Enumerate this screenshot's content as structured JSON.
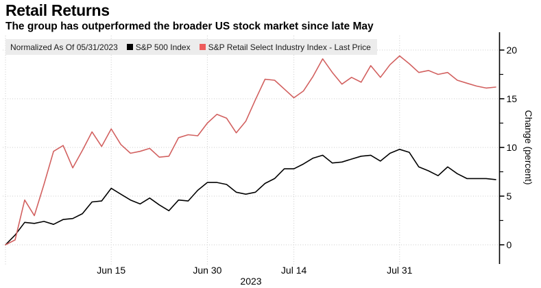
{
  "title": "Retail Returns",
  "subtitle": "The group has outperformed the broader US stock market since late May",
  "legend": {
    "note": "Normalized As Of 05/31/2023",
    "items": [
      {
        "label": "S&P 500 Index",
        "marker_color": "#000000"
      },
      {
        "label": "S&P Retail Select Industry Index - Last Price",
        "marker_color": "#ee5c5c"
      }
    ]
  },
  "chart_data": {
    "type": "line",
    "title": "Retail Returns",
    "subtitle": "The group has outperformed the broader US stock market since late May",
    "xlabel": "",
    "ylabel": "Change (percent)",
    "ylim": [
      0,
      20
    ],
    "grid": "dotted",
    "legend_position": "top-left-band",
    "x_axis": {
      "year_label": "2023",
      "num_points": 52,
      "start_gridline_index": 0,
      "ticks": [
        {
          "label": "Jun 15",
          "index": 11
        },
        {
          "label": "Jun 30",
          "index": 21
        },
        {
          "label": "Jul 14",
          "index": 30
        },
        {
          "label": "Jul 31",
          "index": 41
        }
      ]
    },
    "y_axis": {
      "label": "Change (percent)",
      "ticks": [
        0,
        5,
        10,
        15,
        20
      ],
      "minor_ticks": [
        2.5,
        7.5,
        12.5,
        17.5
      ],
      "side": "right"
    },
    "series": [
      {
        "name": "S&P 500 Index",
        "color": "#000000",
        "values": [
          0,
          1.0,
          2.3,
          2.2,
          2.4,
          2.1,
          2.6,
          2.7,
          3.2,
          4.4,
          4.5,
          5.8,
          5.2,
          4.6,
          4.2,
          4.8,
          4.1,
          3.5,
          4.6,
          4.5,
          5.6,
          6.4,
          6.4,
          6.2,
          5.4,
          5.2,
          5.4,
          6.3,
          6.8,
          7.8,
          7.8,
          8.3,
          8.9,
          9.2,
          8.4,
          8.5,
          8.8,
          9.1,
          9.2,
          8.6,
          9.4,
          9.8,
          9.5,
          8.0,
          7.6,
          7.1,
          8.0,
          7.3,
          6.8,
          6.8,
          6.8,
          6.7
        ]
      },
      {
        "name": "S&P Retail Select Industry Index - Last Price",
        "color": "#d2605f",
        "values": [
          0,
          0.5,
          4.6,
          3.0,
          6.2,
          9.6,
          10.2,
          7.9,
          9.7,
          11.6,
          10.1,
          11.9,
          10.3,
          9.4,
          9.6,
          9.9,
          9.0,
          9.1,
          11.0,
          11.3,
          11.2,
          12.5,
          13.4,
          13.0,
          11.5,
          12.7,
          14.9,
          17.0,
          16.9,
          16.0,
          15.1,
          15.8,
          17.3,
          19.1,
          17.7,
          16.5,
          17.2,
          16.7,
          18.4,
          17.2,
          18.5,
          19.4,
          18.6,
          17.7,
          17.9,
          17.5,
          17.7,
          16.9,
          16.6,
          16.3,
          16.1,
          16.2
        ]
      }
    ]
  }
}
